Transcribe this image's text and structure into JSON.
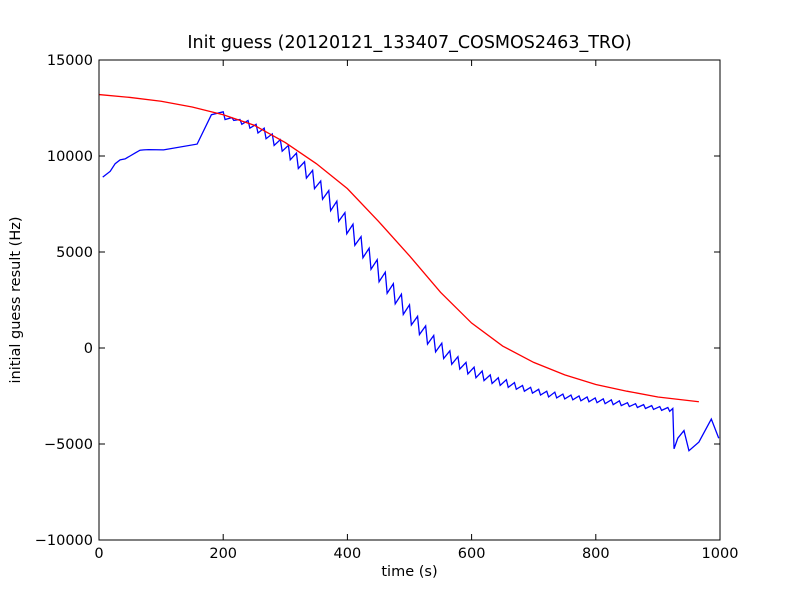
{
  "chart_data": {
    "type": "line",
    "title": "Init guess (20120121_133407_COSMOS2463_TRO)",
    "xlabel": "time (s)",
    "ylabel": "initial guess result (Hz)",
    "xlim": [
      0,
      1000
    ],
    "ylim": [
      -10000,
      15000
    ],
    "x_ticks": [
      0,
      200,
      400,
      600,
      800,
      1000
    ],
    "x_tick_labels": [
      "0",
      "200",
      "400",
      "600",
      "800",
      "1000"
    ],
    "y_ticks": [
      -10000,
      -5000,
      0,
      5000,
      10000,
      15000
    ],
    "y_tick_labels": [
      "−10000",
      "−5000",
      "0",
      "5000",
      "10000",
      "15000"
    ],
    "grid": false,
    "legend": "none",
    "series": [
      {
        "color": "#0000ff",
        "x": [
          6,
          18,
          26,
          34,
          42,
          50,
          58,
          66,
          72,
          80,
          104,
          158,
          181,
          200,
          203,
          214,
          217,
          227,
          230,
          240,
          243,
          253,
          256,
          266,
          269,
          279,
          282,
          292,
          295,
          305,
          308,
          318,
          321,
          331,
          334,
          344,
          347,
          357,
          360,
          370,
          373,
          383,
          386,
          396,
          399,
          409,
          412,
          422,
          425,
          435,
          438,
          448,
          451,
          461,
          464,
          474,
          477,
          487,
          490,
          500,
          503,
          513,
          516,
          526,
          529,
          539,
          542,
          552,
          555,
          565,
          568,
          578,
          581,
          591,
          594,
          604,
          607,
          617,
          620,
          630,
          633,
          643,
          646,
          656,
          659,
          669,
          672,
          682,
          685,
          695,
          698,
          708,
          711,
          721,
          724,
          734,
          737,
          747,
          750,
          760,
          763,
          773,
          776,
          786,
          789,
          799,
          802,
          812,
          815,
          825,
          828,
          838,
          841,
          851,
          854,
          864,
          867,
          877,
          880,
          890,
          893,
          903,
          906,
          916,
          919,
          924,
          926,
          932,
          942,
          950,
          966,
          986,
          998
        ],
        "y": [
          8900,
          9200,
          9600,
          9800,
          9850,
          10000,
          10150,
          10300,
          10320,
          10330,
          10320,
          10620,
          12150,
          12300,
          11900,
          12000,
          11850,
          11900,
          11650,
          11850,
          11450,
          11650,
          11200,
          11450,
          10900,
          11150,
          10550,
          10850,
          10250,
          10550,
          9800,
          10150,
          9350,
          9700,
          8850,
          9250,
          8300,
          8700,
          7750,
          8200,
          7150,
          7650,
          6600,
          7050,
          5950,
          6450,
          5350,
          5800,
          4700,
          5200,
          4100,
          4600,
          3450,
          3950,
          2850,
          3350,
          2300,
          2800,
          1750,
          2250,
          1200,
          1650,
          700,
          1150,
          200,
          650,
          -200,
          250,
          -550,
          -150,
          -850,
          -450,
          -1100,
          -750,
          -1350,
          -1000,
          -1550,
          -1200,
          -1700,
          -1400,
          -1850,
          -1550,
          -1950,
          -1650,
          -2050,
          -1800,
          -2150,
          -1950,
          -2250,
          -2050,
          -2350,
          -2150,
          -2450,
          -2250,
          -2550,
          -2300,
          -2600,
          -2400,
          -2650,
          -2450,
          -2700,
          -2500,
          -2750,
          -2550,
          -2800,
          -2600,
          -2850,
          -2650,
          -2900,
          -2700,
          -2950,
          -2750,
          -3000,
          -2850,
          -3050,
          -2900,
          -3100,
          -2950,
          -3150,
          -3000,
          -3200,
          -3050,
          -3250,
          -3100,
          -3300,
          -3150,
          -5250,
          -4700,
          -4300,
          -5350,
          -4900,
          -3700,
          -4700
        ]
      },
      {
        "color": "#ff0000",
        "x": [
          0,
          50,
          100,
          150,
          200,
          250,
          300,
          350,
          400,
          450,
          500,
          550,
          600,
          650,
          700,
          750,
          800,
          850,
          900,
          966
        ],
        "y": [
          13200,
          13050,
          12850,
          12550,
          12150,
          11600,
          10700,
          9600,
          8300,
          6600,
          4800,
          2900,
          1300,
          100,
          -750,
          -1400,
          -1900,
          -2250,
          -2550,
          -2800
        ]
      }
    ]
  }
}
